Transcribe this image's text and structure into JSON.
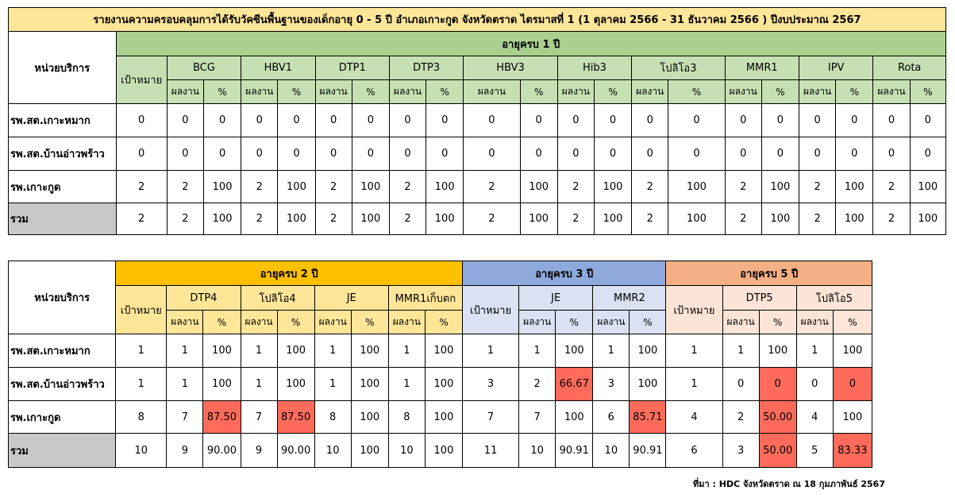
{
  "table1": {
    "title": "รายงานความครอบคลุมการได้รับวัคซีนพื้นฐานของเด็กอายุ 0 - 5 ปี อำเภอเกาะกูด จังหวัดตราด ไตรมาสที่ 1 (1 ตุลาคม 2566 - 31 ธันวาคม 2566 ) ปีงบประมาณ 2567",
    "unit_header": "หน่วยบริการ",
    "age_band": "อายุครบ 1 ปี",
    "target_header": "เป้าหมาย",
    "result_label": "ผลงาน",
    "percent_label": "%",
    "vaccines": [
      "BCG",
      "HBV1",
      "DTP1",
      "DTP3",
      "HBV3",
      "Hib3",
      "โปลิโอ3",
      "MMR1",
      "IPV",
      "Rota"
    ],
    "rows": [
      {
        "unit": "รพ.สต.เกาะหมาก",
        "target": "0",
        "cells": [
          "0",
          "0",
          "0",
          "0",
          "0",
          "0",
          "0",
          "0",
          "0",
          "0",
          "0",
          "0",
          "0",
          "0",
          "0",
          "0",
          "0",
          "0",
          "0",
          "0"
        ]
      },
      {
        "unit": "รพ.สต.บ้านอ่าวพร้าว",
        "target": "0",
        "cells": [
          "0",
          "0",
          "0",
          "0",
          "0",
          "0",
          "0",
          "0",
          "0",
          "0",
          "0",
          "0",
          "0",
          "0",
          "0",
          "0",
          "0",
          "0",
          "0",
          "0"
        ]
      },
      {
        "unit": "รพ.เกาะกูด",
        "target": "2",
        "cells": [
          "2",
          "100",
          "2",
          "100",
          "2",
          "100",
          "2",
          "100",
          "2",
          "100",
          "2",
          "100",
          "2",
          "100",
          "2",
          "100",
          "2",
          "100",
          "2",
          "100"
        ]
      },
      {
        "unit": "รวม",
        "target": "2",
        "cells": [
          "2",
          "100",
          "2",
          "100",
          "2",
          "100",
          "2",
          "100",
          "2",
          "100",
          "2",
          "100",
          "2",
          "100",
          "2",
          "100",
          "2",
          "100",
          "2",
          "100"
        ]
      }
    ]
  },
  "table2": {
    "unit_header": "หน่วยบริการ",
    "age2_band": "อายุครบ 2 ปี",
    "age3_band": "อายุครบ 3 ปี",
    "age5_band": "อายุครบ 5 ปี",
    "target_header": "เป้าหมาย",
    "result_label": "ผลงาน",
    "percent_label": "%",
    "age2_vaccines": [
      "DTP4",
      "โปลิโอ4",
      "JE",
      "MMR1เก็บตก"
    ],
    "age3_vaccines": [
      "JE",
      "MMR2"
    ],
    "age5_vaccines": [
      "DTP5",
      "โปลิโอ5"
    ],
    "highlight_color": "#ff6b5b",
    "rows": [
      {
        "unit": "รพ.สต.เกาะหมาก",
        "a2": [
          "1",
          "1",
          "100",
          "1",
          "100",
          "1",
          "100",
          "1",
          "100"
        ],
        "a3": [
          "1",
          "1",
          "100",
          "1",
          "100"
        ],
        "a5": [
          "1",
          "1",
          "100",
          "1",
          "100"
        ]
      },
      {
        "unit": "รพ.สต.บ้านอ่าวพร้าว",
        "a2": [
          "1",
          "1",
          "100",
          "1",
          "100",
          "1",
          "100",
          "1",
          "100"
        ],
        "a3": [
          "3",
          "2",
          "66.67",
          "3",
          "100"
        ],
        "a5": [
          "1",
          "0",
          "0",
          "0",
          "0"
        ]
      },
      {
        "unit": "รพ.เกาะกูด",
        "a2": [
          "8",
          "7",
          "87.50",
          "7",
          "87.50",
          "8",
          "100",
          "8",
          "100"
        ],
        "a3": [
          "7",
          "7",
          "100",
          "6",
          "85.71"
        ],
        "a5": [
          "4",
          "2",
          "50.00",
          "4",
          "100"
        ]
      },
      {
        "unit": "รวม",
        "a2": [
          "10",
          "9",
          "90.00",
          "9",
          "90.00",
          "10",
          "100",
          "10",
          "100"
        ],
        "a3": [
          "11",
          "10",
          "90.91",
          "10",
          "90.91"
        ],
        "a5": [
          "6",
          "3",
          "50.00",
          "5",
          "83.33"
        ]
      }
    ]
  },
  "source_note": "ที่มา : HDC จังหวัดตราด ณ 18 กุมภาพันธ์ 2567"
}
